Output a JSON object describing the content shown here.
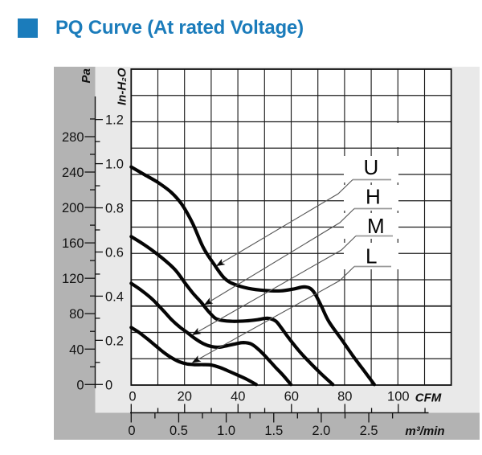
{
  "title": {
    "text": "PQ Curve (At rated Voltage)",
    "accent_color": "#1b7cbb"
  },
  "axes": {
    "pressure_pa": {
      "unit_label": "Pa",
      "tick_labels": [
        "280",
        "240",
        "200",
        "160",
        "120",
        "80",
        "40",
        "0"
      ]
    },
    "pressure_inh2o": {
      "unit_label": "In-H₂O",
      "tick_labels": [
        "1.2",
        "1.0",
        "0.8",
        "0.6",
        "0.4",
        "0.2",
        "0"
      ]
    },
    "flow_cfm": {
      "unit_label": "CFM",
      "tick_labels": [
        "0",
        "20",
        "40",
        "60",
        "80",
        "100"
      ]
    },
    "flow_m3min": {
      "unit_label": "m³/min",
      "tick_labels": [
        "0",
        "0.5",
        "1.0",
        "1.5",
        "2.0",
        "2.5"
      ]
    }
  },
  "chart_data": {
    "type": "line",
    "title": "PQ Curve (At rated Voltage)",
    "xlabel": "CFM",
    "x2label": "m³/min",
    "ylabel": "In-H₂O",
    "y2label": "Pa",
    "grid": "on",
    "x_range_cfm": [
      0,
      119.8
    ],
    "y_range_inh2o": [
      0,
      1.43
    ],
    "series": [
      {
        "name": "U",
        "points": [
          [
            0,
            0.985
          ],
          [
            5,
            0.95
          ],
          [
            10,
            0.915
          ],
          [
            15,
            0.87
          ],
          [
            19,
            0.815
          ],
          [
            23,
            0.73
          ],
          [
            27,
            0.62
          ],
          [
            31,
            0.545
          ],
          [
            35,
            0.48
          ],
          [
            39,
            0.452
          ],
          [
            44,
            0.435
          ],
          [
            50,
            0.426
          ],
          [
            56,
            0.424
          ],
          [
            61,
            0.433
          ],
          [
            65,
            0.442
          ],
          [
            68,
            0.425
          ],
          [
            71,
            0.36
          ],
          [
            74,
            0.285
          ],
          [
            79,
            0.2
          ],
          [
            83,
            0.13
          ],
          [
            87,
            0.065
          ],
          [
            91,
            0
          ]
        ]
      },
      {
        "name": "H",
        "points": [
          [
            0,
            0.67
          ],
          [
            5,
            0.632
          ],
          [
            10,
            0.588
          ],
          [
            14,
            0.548
          ],
          [
            17,
            0.512
          ],
          [
            20,
            0.462
          ],
          [
            23,
            0.415
          ],
          [
            26,
            0.375
          ],
          [
            29,
            0.33
          ],
          [
            31.5,
            0.3
          ],
          [
            34,
            0.29
          ],
          [
            38,
            0.286
          ],
          [
            43,
            0.288
          ],
          [
            47,
            0.293
          ],
          [
            51,
            0.3
          ],
          [
            54,
            0.288
          ],
          [
            56,
            0.26
          ],
          [
            59,
            0.21
          ],
          [
            63,
            0.15
          ],
          [
            67,
            0.098
          ],
          [
            71,
            0.05
          ],
          [
            75.5,
            0
          ]
        ]
      },
      {
        "name": "M",
        "points": [
          [
            0,
            0.458
          ],
          [
            4,
            0.425
          ],
          [
            8,
            0.385
          ],
          [
            12,
            0.335
          ],
          [
            15,
            0.295
          ],
          [
            18,
            0.262
          ],
          [
            21,
            0.235
          ],
          [
            24,
            0.207
          ],
          [
            27,
            0.185
          ],
          [
            30,
            0.172
          ],
          [
            33,
            0.169
          ],
          [
            36,
            0.176
          ],
          [
            39,
            0.184
          ],
          [
            42,
            0.19
          ],
          [
            45,
            0.183
          ],
          [
            48,
            0.155
          ],
          [
            51,
            0.118
          ],
          [
            54,
            0.078
          ],
          [
            57,
            0.04
          ],
          [
            59.8,
            0
          ]
        ]
      },
      {
        "name": "L",
        "points": [
          [
            0,
            0.258
          ],
          [
            3,
            0.235
          ],
          [
            6,
            0.207
          ],
          [
            9,
            0.177
          ],
          [
            12,
            0.147
          ],
          [
            15,
            0.122
          ],
          [
            18,
            0.103
          ],
          [
            21,
            0.093
          ],
          [
            24,
            0.09
          ],
          [
            27,
            0.09
          ],
          [
            30,
            0.088
          ],
          [
            33,
            0.078
          ],
          [
            36,
            0.063
          ],
          [
            39,
            0.047
          ],
          [
            43,
            0.025
          ],
          [
            46.8,
            0
          ]
        ]
      }
    ],
    "annotations": [
      {
        "label": "U",
        "points_to_cfm": 32
      },
      {
        "label": "H",
        "points_to_cfm": 27.5
      },
      {
        "label": "M",
        "points_to_cfm": 23
      },
      {
        "label": "L",
        "points_to_cfm": 23
      }
    ]
  }
}
